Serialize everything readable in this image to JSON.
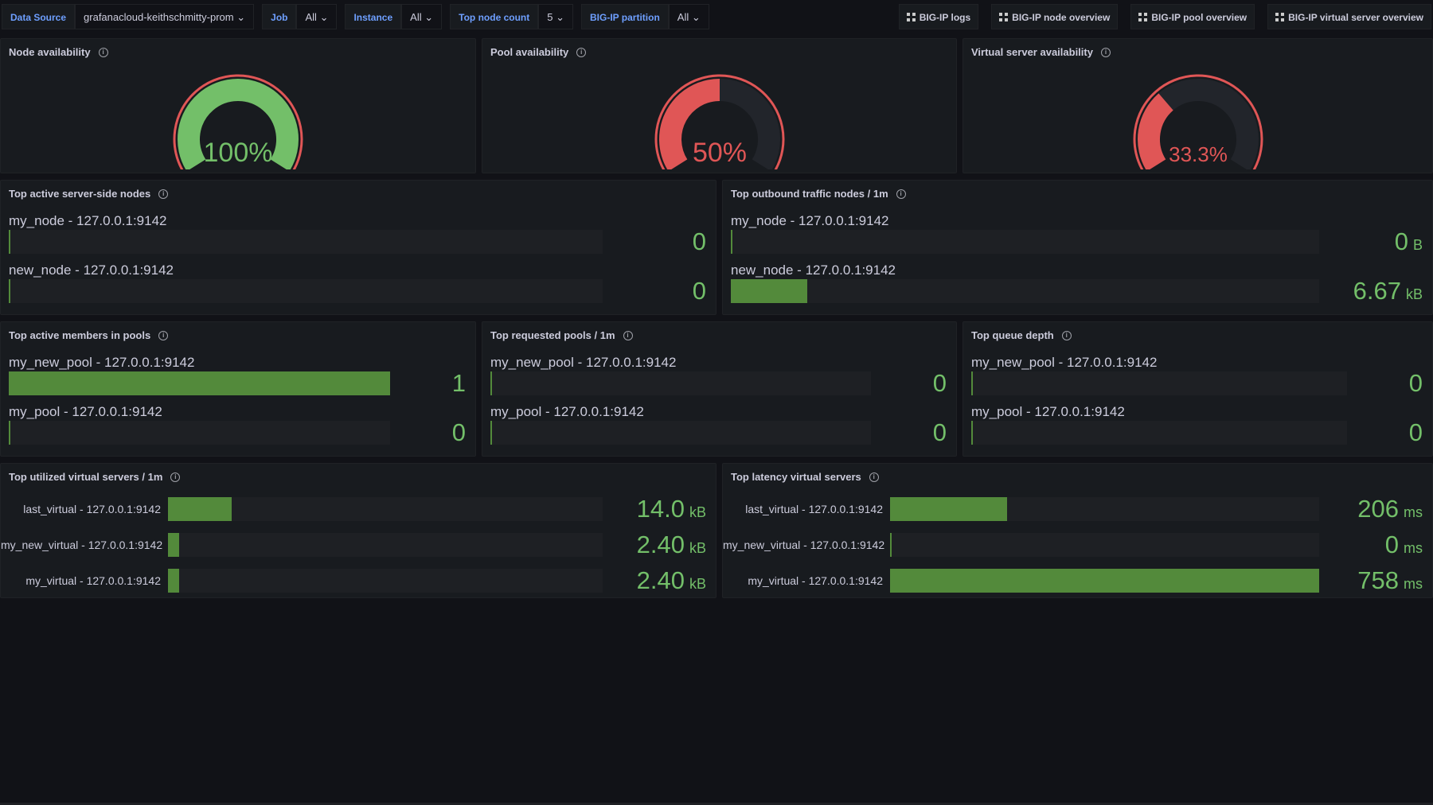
{
  "variables": [
    {
      "label": "Data Source",
      "value": "grafanacloud-keithschmitty-prom"
    },
    {
      "label": "Job",
      "value": "All"
    },
    {
      "label": "Instance",
      "value": "All"
    },
    {
      "label": "Top node count",
      "value": "5"
    },
    {
      "label": "BIG-IP partition",
      "value": "All"
    }
  ],
  "links": [
    "BIG-IP logs",
    "BIG-IP node overview",
    "BIG-IP pool overview",
    "BIG-IP virtual server overview"
  ],
  "colors": {
    "green": "#73bf69",
    "red": "#e05656",
    "yellow": "#fade2a",
    "bar": "#538a3b"
  },
  "gauges": [
    {
      "title": "Node availability",
      "value": "100%",
      "fraction": 1.0,
      "color": "#73bf69"
    },
    {
      "title": "Pool availability",
      "value": "50%",
      "fraction": 0.5,
      "color": "#e05656"
    },
    {
      "title": "Virtual server availability",
      "value": "33.3%",
      "fraction": 0.333,
      "color": "#e05656"
    }
  ],
  "bar_panels": [
    {
      "title": "Top active server-side nodes",
      "layout": "stacked",
      "rows": [
        {
          "label": "my_node - 127.0.0.1:9142",
          "value": "0",
          "unit": "",
          "fraction": 0
        },
        {
          "label": "new_node - 127.0.0.1:9142",
          "value": "0",
          "unit": "",
          "fraction": 0
        }
      ]
    },
    {
      "title": "Top outbound traffic nodes / 1m",
      "layout": "stacked",
      "rows": [
        {
          "label": "my_node - 127.0.0.1:9142",
          "value": "0",
          "unit": "B",
          "fraction": 0
        },
        {
          "label": "new_node - 127.0.0.1:9142",
          "value": "6.67",
          "unit": "kB",
          "fraction": 0.13
        }
      ]
    },
    {
      "title": "Top active members in pools",
      "layout": "stacked",
      "rows": [
        {
          "label": "my_new_pool - 127.0.0.1:9142",
          "value": "1",
          "unit": "",
          "fraction": 1
        },
        {
          "label": "my_pool - 127.0.0.1:9142",
          "value": "0",
          "unit": "",
          "fraction": 0
        }
      ]
    },
    {
      "title": "Top requested pools / 1m",
      "layout": "stacked",
      "rows": [
        {
          "label": "my_new_pool - 127.0.0.1:9142",
          "value": "0",
          "unit": "",
          "fraction": 0
        },
        {
          "label": "my_pool - 127.0.0.1:9142",
          "value": "0",
          "unit": "",
          "fraction": 0
        }
      ]
    },
    {
      "title": "Top queue depth",
      "layout": "stacked",
      "rows": [
        {
          "label": "my_new_pool - 127.0.0.1:9142",
          "value": "0",
          "unit": "",
          "fraction": 0
        },
        {
          "label": "my_pool - 127.0.0.1:9142",
          "value": "0",
          "unit": "",
          "fraction": 0
        }
      ]
    },
    {
      "title": "Top utilized virtual servers / 1m",
      "layout": "inline",
      "rows": [
        {
          "label": "last_virtual - 127.0.0.1:9142",
          "value": "14.0",
          "unit": "kB",
          "fraction": 0.146
        },
        {
          "label": "my_new_virtual - 127.0.0.1:9142",
          "value": "2.40",
          "unit": "kB",
          "fraction": 0.025
        },
        {
          "label": "my_virtual - 127.0.0.1:9142",
          "value": "2.40",
          "unit": "kB",
          "fraction": 0.025
        }
      ]
    },
    {
      "title": "Top latency virtual servers",
      "layout": "inline",
      "rows": [
        {
          "label": "last_virtual - 127.0.0.1:9142",
          "value": "206",
          "unit": "ms",
          "fraction": 0.272
        },
        {
          "label": "my_new_virtual - 127.0.0.1:9142",
          "value": "0",
          "unit": "ms",
          "fraction": 0
        },
        {
          "label": "my_virtual - 127.0.0.1:9142",
          "value": "758",
          "unit": "ms",
          "fraction": 1
        }
      ]
    }
  ]
}
